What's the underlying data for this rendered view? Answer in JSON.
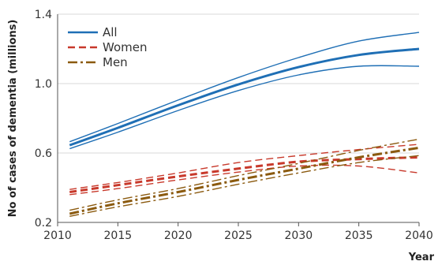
{
  "chart_data": {
    "type": "line",
    "title": "",
    "xlabel": "Year",
    "ylabel": "No of cases of dementia (millions)",
    "xlim": [
      2010,
      2040
    ],
    "ylim": [
      0.2,
      1.4
    ],
    "xticks": [
      2010,
      2015,
      2020,
      2025,
      2030,
      2035,
      2040
    ],
    "yticks": [
      0.2,
      0.6,
      1.0,
      1.4
    ],
    "xtick_labels": [
      "2010",
      "2015",
      "2020",
      "2025",
      "2030",
      "2035",
      "2040"
    ],
    "ytick_labels": [
      "0.2",
      "0.6",
      "1.0",
      "1.4"
    ],
    "grid": true,
    "legend_position": "top-left",
    "x": [
      2011,
      2015,
      2020,
      2025,
      2030,
      2035,
      2040
    ],
    "series": [
      {
        "name": "All",
        "color": "#1f6fb5",
        "dash": "solid",
        "values": [
          0.645,
          0.745,
          0.875,
          0.995,
          1.095,
          1.165,
          1.2
        ],
        "lower": [
          0.625,
          0.72,
          0.845,
          0.96,
          1.05,
          1.1,
          1.1
        ],
        "upper": [
          0.665,
          0.77,
          0.905,
          1.035,
          1.15,
          1.245,
          1.295
        ]
      },
      {
        "name": "Women",
        "color": "#c8392b",
        "dash": "dashed",
        "values": [
          0.375,
          0.415,
          0.465,
          0.51,
          0.55,
          0.565,
          0.575
        ],
        "lower": [
          0.36,
          0.395,
          0.445,
          0.49,
          0.525,
          0.525,
          0.485
        ],
        "upper": [
          0.39,
          0.43,
          0.485,
          0.545,
          0.585,
          0.62,
          0.65
        ]
      },
      {
        "name": "Men",
        "color": "#8b5a0f",
        "dash": "dashdot",
        "values": [
          0.25,
          0.31,
          0.375,
          0.445,
          0.51,
          0.575,
          0.63
        ],
        "lower": [
          0.235,
          0.29,
          0.35,
          0.42,
          0.485,
          0.545,
          0.585
        ],
        "upper": [
          0.27,
          0.33,
          0.395,
          0.47,
          0.54,
          0.615,
          0.68
        ]
      }
    ]
  }
}
